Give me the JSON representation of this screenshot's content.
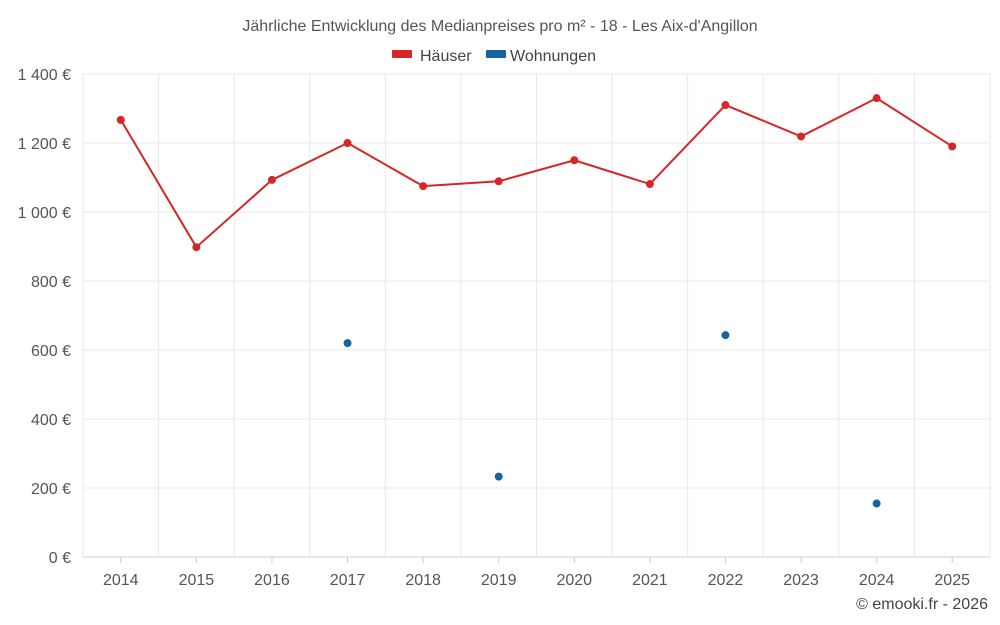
{
  "chart_data": {
    "type": "line",
    "title": "Jährliche Entwicklung des Medianpreises pro m² - 18 - Les Aix-d'Angillon",
    "categories": [
      "2014",
      "2015",
      "2016",
      "2017",
      "2018",
      "2019",
      "2020",
      "2021",
      "2022",
      "2023",
      "2024",
      "2025"
    ],
    "series": [
      {
        "name": "Häuser",
        "color": "#d62728",
        "values": [
          1267,
          898,
          1093,
          1200,
          1075,
          1089,
          1150,
          1081,
          1310,
          1219,
          1330,
          1190
        ]
      },
      {
        "name": "Wohnungen",
        "color": "#1565a0",
        "values": [
          null,
          null,
          null,
          620,
          null,
          233,
          null,
          null,
          643,
          null,
          155,
          null
        ]
      }
    ],
    "ylim": [
      0,
      1400
    ],
    "yticks": [
      0,
      200,
      400,
      600,
      800,
      1000,
      1200,
      1400
    ],
    "ytick_labels": [
      "0 €",
      "200 €",
      "400 €",
      "600 €",
      "800 €",
      "1 000 €",
      "1 200 €",
      "1 400 €"
    ],
    "xlabel": "",
    "ylabel": "",
    "grid": true,
    "legend_position": "top-center"
  },
  "credit": "© emooki.fr - 2026"
}
